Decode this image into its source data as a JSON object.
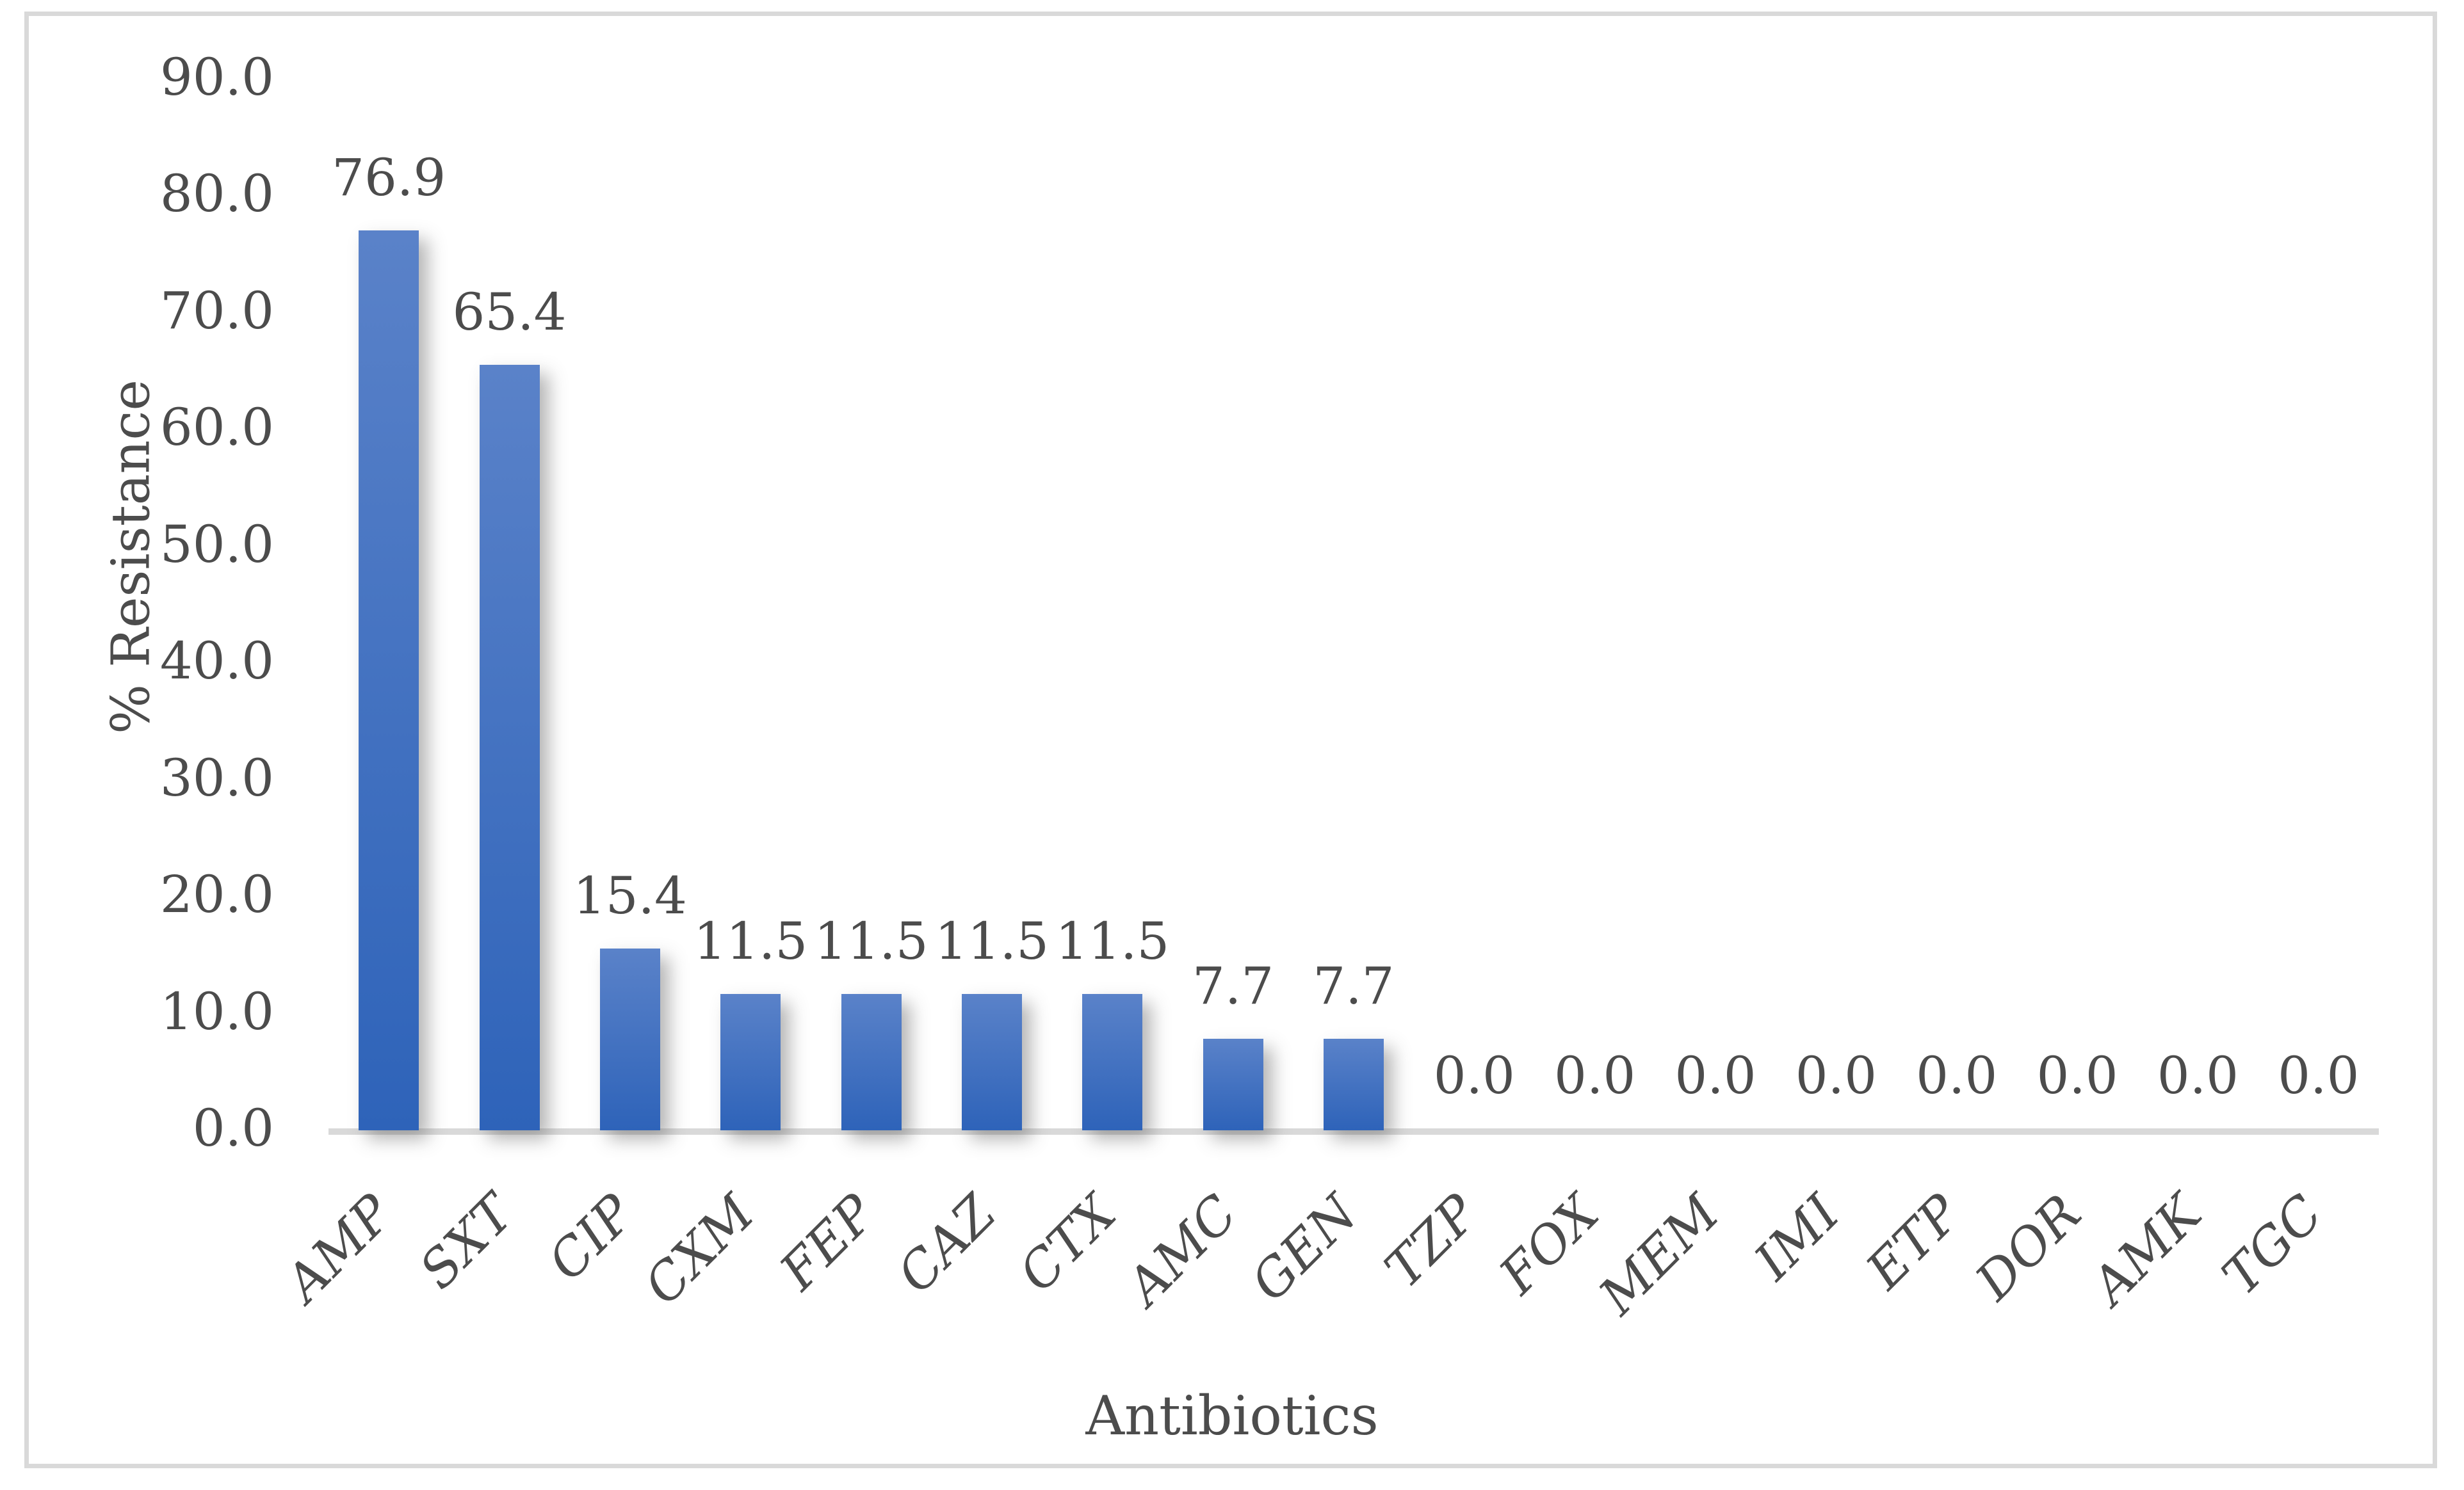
{
  "figure": {
    "background_color": "#ffffff",
    "border_color": "#d9d9d9"
  },
  "chart_data": {
    "type": "bar",
    "title": "",
    "xlabel": "Antibiotics",
    "ylabel": "% Resistance",
    "categories": [
      "AMP",
      "SXT",
      "CIP",
      "CXM",
      "FEP",
      "CAZ",
      "CTX",
      "AMC",
      "GEN",
      "TZP",
      "FOX",
      "MEM",
      "IMI",
      "ETP",
      "DOR",
      "AMK",
      "TGC"
    ],
    "values": [
      76.9,
      65.4,
      15.4,
      11.5,
      11.5,
      11.5,
      11.5,
      7.7,
      7.7,
      0.0,
      0.0,
      0.0,
      0.0,
      0.0,
      0.0,
      0.0,
      0.0
    ],
    "value_labels": [
      "76.9",
      "65.4",
      "15.4",
      "11.5",
      "11.5",
      "11.5",
      "11.5",
      "7.7",
      "7.7",
      "0.0",
      "0.0",
      "0.0",
      "0.0",
      "0.0",
      "0.0",
      "0.0",
      "0.0"
    ],
    "yticks": [
      "0.0",
      "10.0",
      "20.0",
      "30.0",
      "40.0",
      "50.0",
      "60.0",
      "70.0",
      "80.0",
      "90.0"
    ],
    "ytick_step": 10,
    "ylim": [
      0,
      90
    ],
    "grid": false,
    "legend": false,
    "bar_color_top": "#5a82c9",
    "bar_color_bottom": "#2e63b9",
    "axis_line_color": "#d9d9d9",
    "text_color": "#4c4c4c"
  }
}
